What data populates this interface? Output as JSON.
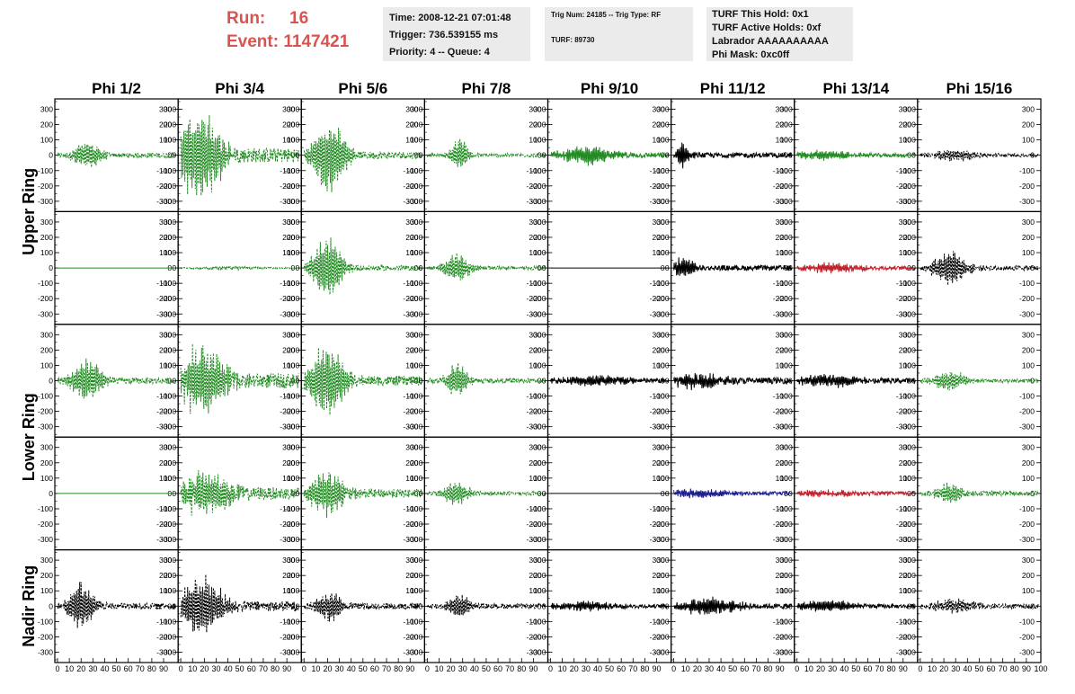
{
  "header": {
    "run_label": "Run:",
    "run_value": "16",
    "event_label": "Event:",
    "event_value": "1147421",
    "info1": [
      "Time: 2008-12-21 07:01:48",
      "Trigger: 736.539155 ms",
      "Priority: 4 -- Queue: 4"
    ],
    "info2": [
      "Trig Num: 24185 -- Trig Type: RF",
      "TURF: 89730"
    ],
    "info3": [
      "TURF This Hold: 0x1",
      "TURF Active Holds: 0xf",
      "Labrador AAAAAAAAAA",
      "Phi Mask: 0xc0ff"
    ]
  },
  "colors": {
    "triggered": "#228b22",
    "normal": "#000000",
    "red": "#c0202a",
    "blue": "#1c1c8c"
  },
  "chart_data": {
    "type": "line",
    "columns": [
      "Phi 1/2",
      "Phi 3/4",
      "Phi 5/6",
      "Phi 7/8",
      "Phi 9/10",
      "Phi 11/12",
      "Phi 13/14",
      "Phi 15/16"
    ],
    "row_labels": [
      {
        "text": "Upper Ring",
        "rows": [
          0,
          1
        ]
      },
      {
        "text": "Lower Ring",
        "rows": [
          2,
          3
        ]
      },
      {
        "text": "Nadir Ring",
        "rows": [
          4,
          4
        ]
      }
    ],
    "ylim": [
      -350,
      350
    ],
    "yticks": [
      -300,
      -200,
      -100,
      0,
      100,
      200,
      300
    ],
    "xlim": [
      0,
      100
    ],
    "xticks": [
      0,
      10,
      20,
      30,
      40,
      50,
      60,
      70,
      80,
      90
    ],
    "xtick_end_label": "100",
    "panels": [
      [
        {
          "color": "green",
          "style": "dash",
          "peak": 100,
          "pulse": 25,
          "width": 12,
          "noise": 20
        },
        {
          "color": "green",
          "style": "dash",
          "peak": 310,
          "pulse": 15,
          "width": 20,
          "noise": 60
        },
        {
          "color": "green",
          "style": "dash",
          "peak": 260,
          "pulse": 22,
          "width": 14,
          "noise": 30
        },
        {
          "color": "green",
          "style": "dash",
          "peak": 110,
          "pulse": 28,
          "width": 8,
          "noise": 15
        },
        {
          "color": "green",
          "style": "solid",
          "peak": 60,
          "pulse": 30,
          "width": 25,
          "noise": 20
        },
        {
          "color": "black",
          "style": "solid",
          "peak": 90,
          "pulse": 8,
          "width": 6,
          "noise": 20
        },
        {
          "color": "green",
          "style": "solid",
          "peak": 30,
          "pulse": 20,
          "width": 30,
          "noise": 15
        },
        {
          "color": "black",
          "style": "dash",
          "peak": 40,
          "pulse": 30,
          "width": 20,
          "noise": 15
        }
      ],
      [
        {
          "color": "green",
          "style": "flat",
          "peak": 0,
          "pulse": 0,
          "width": 0,
          "noise": 0
        },
        {
          "color": "green",
          "style": "dash",
          "peak": 10,
          "pulse": 40,
          "width": 30,
          "noise": 5
        },
        {
          "color": "green",
          "style": "dash",
          "peak": 210,
          "pulse": 20,
          "width": 14,
          "noise": 20
        },
        {
          "color": "green",
          "style": "dash",
          "peak": 100,
          "pulse": 25,
          "width": 12,
          "noise": 15
        },
        {
          "color": "black",
          "style": "flat",
          "peak": 0,
          "pulse": 0,
          "width": 0,
          "noise": 0
        },
        {
          "color": "black",
          "style": "solid",
          "peak": 70,
          "pulse": 8,
          "width": 10,
          "noise": 20
        },
        {
          "color": "red",
          "style": "solid",
          "peak": 30,
          "pulse": 30,
          "width": 30,
          "noise": 15
        },
        {
          "color": "black",
          "style": "dash",
          "peak": 120,
          "pulse": 25,
          "width": 15,
          "noise": 20
        }
      ],
      [
        {
          "color": "green",
          "style": "dash",
          "peak": 150,
          "pulse": 25,
          "width": 14,
          "noise": 25
        },
        {
          "color": "green",
          "style": "dash",
          "peak": 260,
          "pulse": 20,
          "width": 20,
          "noise": 60
        },
        {
          "color": "green",
          "style": "dash",
          "peak": 260,
          "pulse": 20,
          "width": 16,
          "noise": 40
        },
        {
          "color": "green",
          "style": "dash",
          "peak": 120,
          "pulse": 25,
          "width": 10,
          "noise": 20
        },
        {
          "color": "black",
          "style": "solid",
          "peak": 35,
          "pulse": 40,
          "width": 30,
          "noise": 20
        },
        {
          "color": "black",
          "style": "solid",
          "peak": 50,
          "pulse": 20,
          "width": 25,
          "noise": 25
        },
        {
          "color": "black",
          "style": "solid",
          "peak": 40,
          "pulse": 30,
          "width": 30,
          "noise": 20
        },
        {
          "color": "green",
          "style": "dash",
          "peak": 70,
          "pulse": 25,
          "width": 15,
          "noise": 15
        }
      ],
      [
        {
          "color": "green",
          "style": "flat",
          "peak": 0,
          "pulse": 0,
          "width": 0,
          "noise": 0
        },
        {
          "color": "green",
          "style": "dash",
          "peak": 140,
          "pulse": 20,
          "width": 25,
          "noise": 50
        },
        {
          "color": "green",
          "style": "dash",
          "peak": 150,
          "pulse": 20,
          "width": 16,
          "noise": 35
        },
        {
          "color": "green",
          "style": "dash",
          "peak": 80,
          "pulse": 25,
          "width": 12,
          "noise": 15
        },
        {
          "color": "black",
          "style": "flat",
          "peak": 0,
          "pulse": 0,
          "width": 0,
          "noise": 0
        },
        {
          "color": "blue",
          "style": "solid",
          "peak": 25,
          "pulse": 20,
          "width": 30,
          "noise": 15
        },
        {
          "color": "red",
          "style": "solid",
          "peak": 20,
          "pulse": 20,
          "width": 30,
          "noise": 15
        },
        {
          "color": "green",
          "style": "dash",
          "peak": 80,
          "pulse": 25,
          "width": 12,
          "noise": 20
        }
      ],
      [
        {
          "color": "black",
          "style": "dash",
          "peak": 160,
          "pulse": 20,
          "width": 12,
          "noise": 25
        },
        {
          "color": "black",
          "style": "dash",
          "peak": 190,
          "pulse": 18,
          "width": 20,
          "noise": 40
        },
        {
          "color": "black",
          "style": "dash",
          "peak": 100,
          "pulse": 22,
          "width": 12,
          "noise": 25
        },
        {
          "color": "black",
          "style": "dash",
          "peak": 90,
          "pulse": 28,
          "width": 10,
          "noise": 20
        },
        {
          "color": "black",
          "style": "solid",
          "peak": 30,
          "pulse": 30,
          "width": 30,
          "noise": 15
        },
        {
          "color": "black",
          "style": "solid",
          "peak": 60,
          "pulse": 30,
          "width": 25,
          "noise": 20
        },
        {
          "color": "black",
          "style": "solid",
          "peak": 40,
          "pulse": 25,
          "width": 25,
          "noise": 15
        },
        {
          "color": "black",
          "style": "dash",
          "peak": 50,
          "pulse": 30,
          "width": 20,
          "noise": 20
        }
      ]
    ]
  }
}
